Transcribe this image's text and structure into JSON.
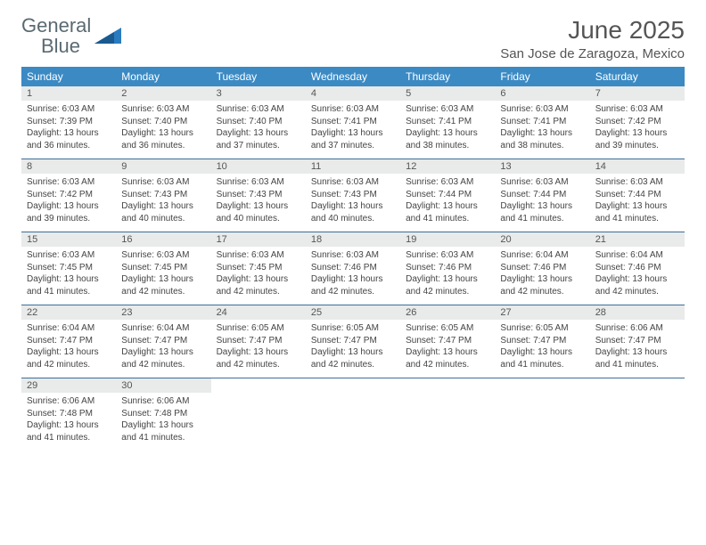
{
  "logo": {
    "text1": "General",
    "text2": "Blue"
  },
  "title": "June 2025",
  "location": "San Jose de Zaragoza, Mexico",
  "colors": {
    "header_bg": "#3b8ac4",
    "header_text": "#ffffff",
    "daynum_bg": "#e9eaea",
    "row_border": "#3b6f99",
    "logo_gray": "#5a6a72",
    "logo_blue": "#2b7bbf",
    "title_color": "#555555"
  },
  "weekdays": [
    "Sunday",
    "Monday",
    "Tuesday",
    "Wednesday",
    "Thursday",
    "Friday",
    "Saturday"
  ],
  "weeks": [
    [
      {
        "n": "1",
        "sr": "6:03 AM",
        "ss": "7:39 PM",
        "dl": "13 hours and 36 minutes."
      },
      {
        "n": "2",
        "sr": "6:03 AM",
        "ss": "7:40 PM",
        "dl": "13 hours and 36 minutes."
      },
      {
        "n": "3",
        "sr": "6:03 AM",
        "ss": "7:40 PM",
        "dl": "13 hours and 37 minutes."
      },
      {
        "n": "4",
        "sr": "6:03 AM",
        "ss": "7:41 PM",
        "dl": "13 hours and 37 minutes."
      },
      {
        "n": "5",
        "sr": "6:03 AM",
        "ss": "7:41 PM",
        "dl": "13 hours and 38 minutes."
      },
      {
        "n": "6",
        "sr": "6:03 AM",
        "ss": "7:41 PM",
        "dl": "13 hours and 38 minutes."
      },
      {
        "n": "7",
        "sr": "6:03 AM",
        "ss": "7:42 PM",
        "dl": "13 hours and 39 minutes."
      }
    ],
    [
      {
        "n": "8",
        "sr": "6:03 AM",
        "ss": "7:42 PM",
        "dl": "13 hours and 39 minutes."
      },
      {
        "n": "9",
        "sr": "6:03 AM",
        "ss": "7:43 PM",
        "dl": "13 hours and 40 minutes."
      },
      {
        "n": "10",
        "sr": "6:03 AM",
        "ss": "7:43 PM",
        "dl": "13 hours and 40 minutes."
      },
      {
        "n": "11",
        "sr": "6:03 AM",
        "ss": "7:43 PM",
        "dl": "13 hours and 40 minutes."
      },
      {
        "n": "12",
        "sr": "6:03 AM",
        "ss": "7:44 PM",
        "dl": "13 hours and 41 minutes."
      },
      {
        "n": "13",
        "sr": "6:03 AM",
        "ss": "7:44 PM",
        "dl": "13 hours and 41 minutes."
      },
      {
        "n": "14",
        "sr": "6:03 AM",
        "ss": "7:44 PM",
        "dl": "13 hours and 41 minutes."
      }
    ],
    [
      {
        "n": "15",
        "sr": "6:03 AM",
        "ss": "7:45 PM",
        "dl": "13 hours and 41 minutes."
      },
      {
        "n": "16",
        "sr": "6:03 AM",
        "ss": "7:45 PM",
        "dl": "13 hours and 42 minutes."
      },
      {
        "n": "17",
        "sr": "6:03 AM",
        "ss": "7:45 PM",
        "dl": "13 hours and 42 minutes."
      },
      {
        "n": "18",
        "sr": "6:03 AM",
        "ss": "7:46 PM",
        "dl": "13 hours and 42 minutes."
      },
      {
        "n": "19",
        "sr": "6:03 AM",
        "ss": "7:46 PM",
        "dl": "13 hours and 42 minutes."
      },
      {
        "n": "20",
        "sr": "6:04 AM",
        "ss": "7:46 PM",
        "dl": "13 hours and 42 minutes."
      },
      {
        "n": "21",
        "sr": "6:04 AM",
        "ss": "7:46 PM",
        "dl": "13 hours and 42 minutes."
      }
    ],
    [
      {
        "n": "22",
        "sr": "6:04 AM",
        "ss": "7:47 PM",
        "dl": "13 hours and 42 minutes."
      },
      {
        "n": "23",
        "sr": "6:04 AM",
        "ss": "7:47 PM",
        "dl": "13 hours and 42 minutes."
      },
      {
        "n": "24",
        "sr": "6:05 AM",
        "ss": "7:47 PM",
        "dl": "13 hours and 42 minutes."
      },
      {
        "n": "25",
        "sr": "6:05 AM",
        "ss": "7:47 PM",
        "dl": "13 hours and 42 minutes."
      },
      {
        "n": "26",
        "sr": "6:05 AM",
        "ss": "7:47 PM",
        "dl": "13 hours and 42 minutes."
      },
      {
        "n": "27",
        "sr": "6:05 AM",
        "ss": "7:47 PM",
        "dl": "13 hours and 41 minutes."
      },
      {
        "n": "28",
        "sr": "6:06 AM",
        "ss": "7:47 PM",
        "dl": "13 hours and 41 minutes."
      }
    ],
    [
      {
        "n": "29",
        "sr": "6:06 AM",
        "ss": "7:48 PM",
        "dl": "13 hours and 41 minutes."
      },
      {
        "n": "30",
        "sr": "6:06 AM",
        "ss": "7:48 PM",
        "dl": "13 hours and 41 minutes."
      },
      null,
      null,
      null,
      null,
      null
    ]
  ],
  "labels": {
    "sunrise": "Sunrise: ",
    "sunset": "Sunset: ",
    "daylight": "Daylight: "
  }
}
